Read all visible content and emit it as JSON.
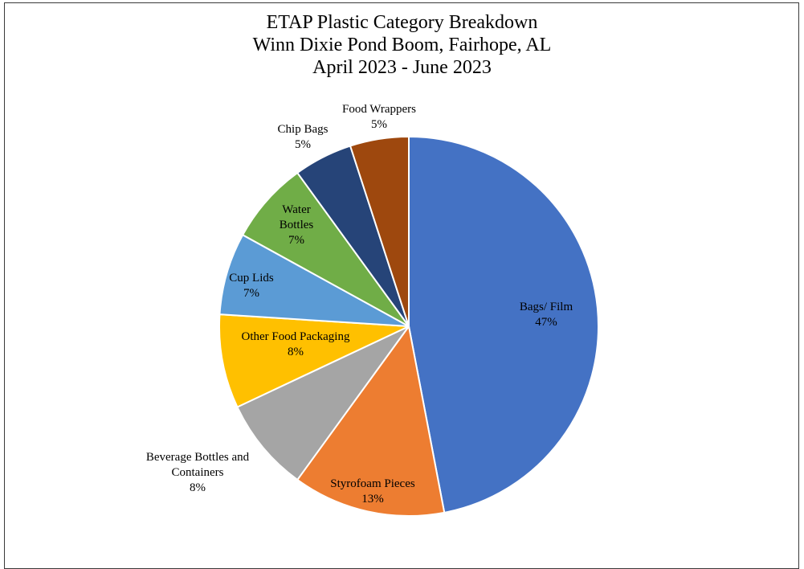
{
  "chart_data": {
    "type": "pie",
    "title_lines": [
      "ETAP Plastic Category Breakdown",
      "Winn Dixie Pond Boom, Fairhope, AL",
      "April 2023 - June 2023"
    ],
    "slices": [
      {
        "label": "Bags/ Film",
        "value": 47,
        "pct": "47%",
        "color": "#4472c4"
      },
      {
        "label": "Styrofoam Pieces",
        "value": 13,
        "pct": "13%",
        "color": "#ed7d31"
      },
      {
        "label": "Beverage Bottles and Containers",
        "value": 8,
        "pct": "8%",
        "color": "#a5a5a5"
      },
      {
        "label": "Other Food Packaging",
        "value": 8,
        "pct": "8%",
        "color": "#ffc000"
      },
      {
        "label": "Cup Lids",
        "value": 7,
        "pct": "7%",
        "color": "#5b9bd5"
      },
      {
        "label": "Water Bottles",
        "value": 7,
        "pct": "7%",
        "color": "#70ad47"
      },
      {
        "label": "Chip Bags",
        "value": 5,
        "pct": "5%",
        "color": "#264478"
      },
      {
        "label": "Food Wrappers",
        "value": 5,
        "pct": "5%",
        "color": "#9e480e"
      }
    ]
  }
}
